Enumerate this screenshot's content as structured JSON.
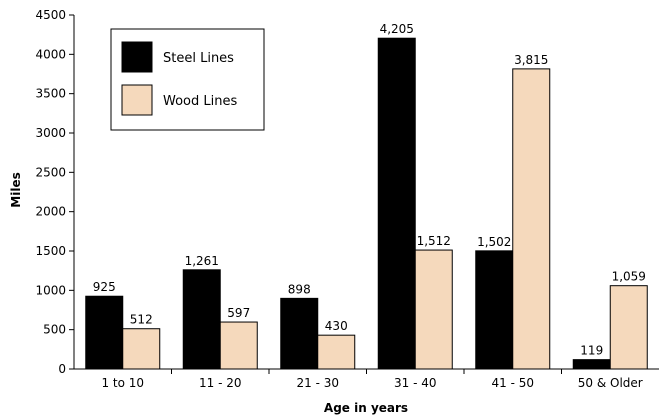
{
  "chart_data": {
    "type": "bar",
    "categories": [
      "1 to 10",
      "11 - 20",
      "21 - 30",
      "31 - 40",
      "41 - 50",
      "50 & Older"
    ],
    "series": [
      {
        "name": "Steel Lines",
        "color": "#000000",
        "values": [
          925,
          1261,
          898,
          4205,
          1502,
          119
        ],
        "labels": [
          "925",
          "1,261",
          "898",
          "4,205",
          "1,502",
          "119"
        ]
      },
      {
        "name": "Wood Lines",
        "color": "#f5d9bc",
        "values": [
          512,
          597,
          430,
          1512,
          3815,
          1059
        ],
        "labels": [
          "512",
          "597",
          "430",
          "1,512",
          "3,815",
          "1,059"
        ]
      }
    ],
    "xlabel": "Age in years",
    "ylabel": "Miles",
    "ylim": [
      0,
      4500
    ],
    "yticks": [
      0,
      500,
      1000,
      1500,
      2000,
      2500,
      3000,
      3500,
      4000,
      4500
    ],
    "grid": false,
    "legend_position": "top-left"
  }
}
